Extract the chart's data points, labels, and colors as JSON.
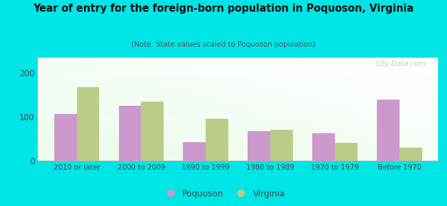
{
  "categories": [
    "2010 or later",
    "2000 to 2009",
    "1990 to 1999",
    "1980 to 1989",
    "1970 to 1979",
    "Before 1970"
  ],
  "poquoson": [
    107,
    125,
    42,
    68,
    63,
    140
  ],
  "virginia": [
    168,
    135,
    95,
    70,
    40,
    30
  ],
  "poquoson_color": "#cc99cc",
  "virginia_color": "#bbcc88",
  "title": "Year of entry for the foreign-born population in Poquoson, Virginia",
  "subtitle": "(Note: State values scaled to Poquoson population)",
  "bg_outer": "#00e5e5",
  "yticks": [
    0,
    100,
    200
  ],
  "bar_width": 0.35,
  "legend_labels": [
    "Poquoson",
    "Virginia"
  ],
  "watermark": "City-Data.com",
  "ylim": [
    0,
    235
  ]
}
